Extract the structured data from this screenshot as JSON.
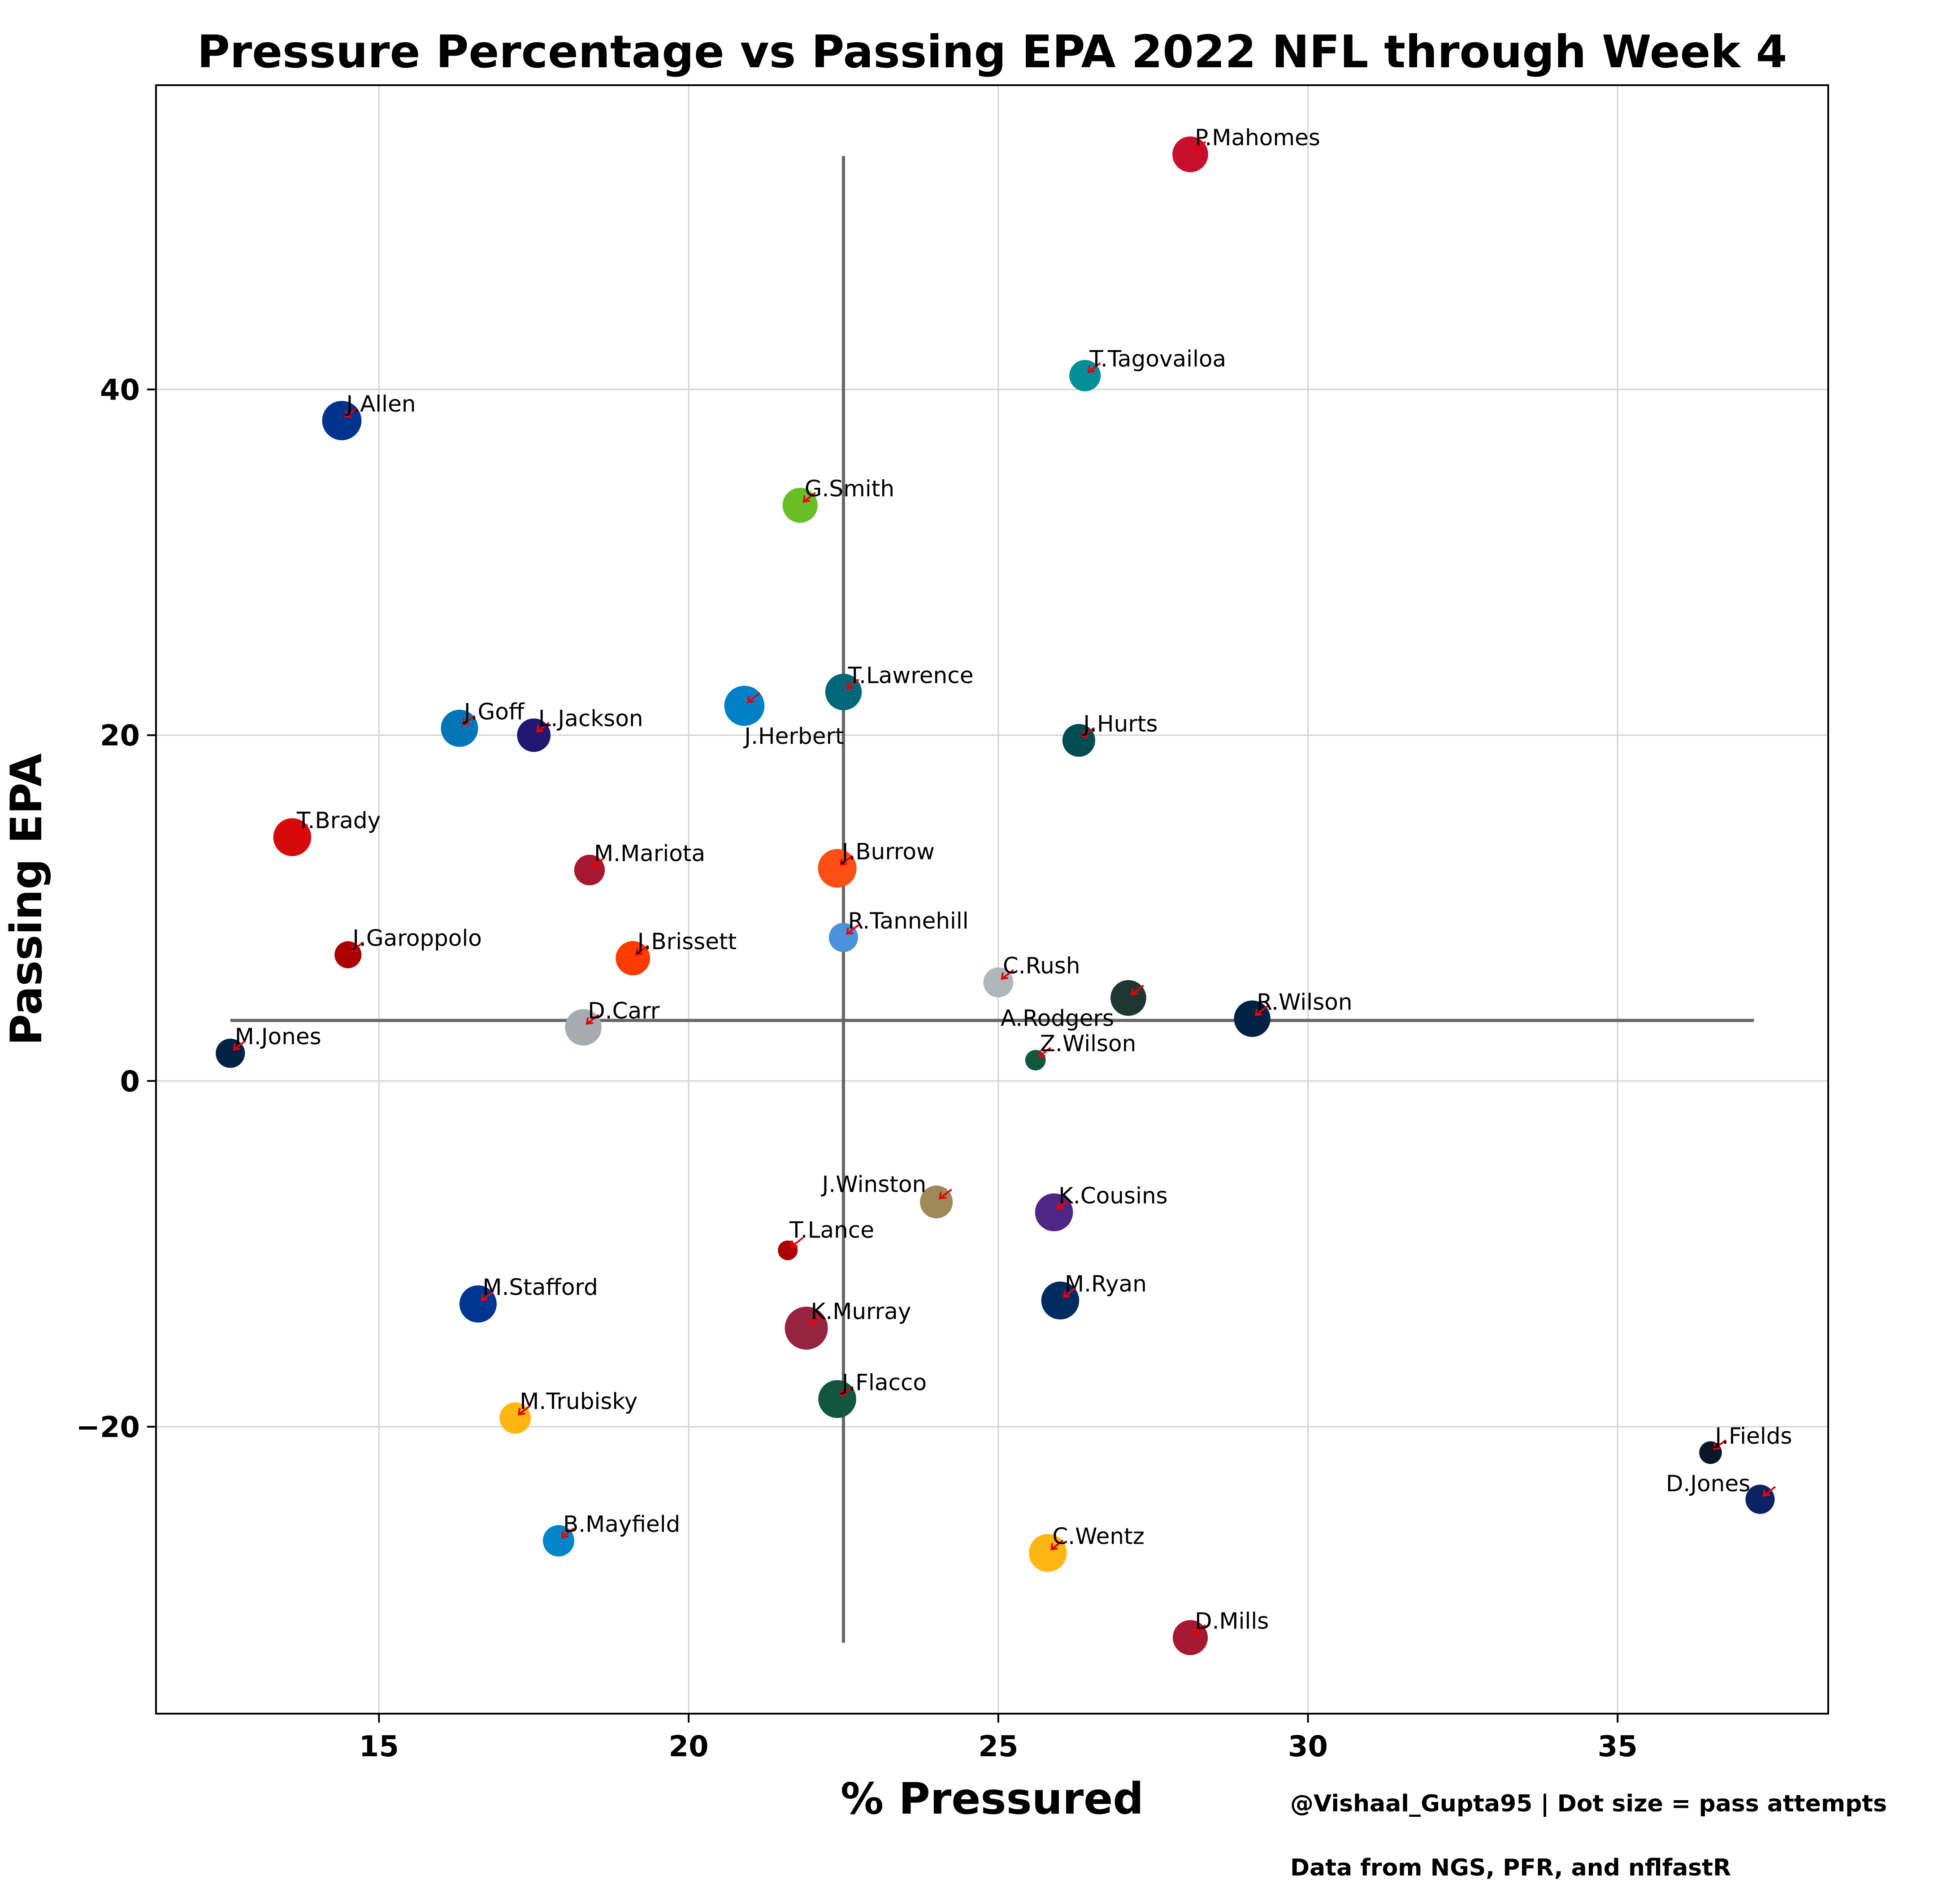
{
  "chart_data": {
    "type": "scatter",
    "title": "Pressure Percentage vs Passing EPA 2022 NFL through Week 4",
    "xlabel": "% Pressured",
    "ylabel": "Passing EPA",
    "xlim": [
      11.4,
      38.4
    ],
    "ylim": [
      -36.6,
      57.6
    ],
    "xticks": [
      15,
      20,
      25,
      30,
      35
    ],
    "yticks": [
      -20,
      0,
      20,
      40
    ],
    "grid": true,
    "credit": "@Vishaal_Gupta95 | Dot size = pass attempts",
    "source": "Data from NGS, PFR, and nflfastR",
    "mean_lines": {
      "x_mean": 22.5,
      "y_mean": 3.5,
      "vertical_y_range": [
        -32.5,
        53.5
      ],
      "horizontal_x_range": [
        12.6,
        37.2
      ],
      "color": "#666666"
    },
    "arrow_color": "#e8000b",
    "points": [
      {
        "name": "P.Mahomes",
        "x": 28.1,
        "y": 53.6,
        "attempts": 150,
        "color": "#c8102e"
      },
      {
        "name": "T.Tagovailoa",
        "x": 26.4,
        "y": 40.8,
        "attempts": 120,
        "color": "#008e97"
      },
      {
        "name": "J.Allen",
        "x": 14.4,
        "y": 38.2,
        "attempts": 175,
        "color": "#00338d"
      },
      {
        "name": "G.Smith",
        "x": 21.8,
        "y": 33.3,
        "attempts": 145,
        "color": "#69be28"
      },
      {
        "name": "T.Lawrence",
        "x": 22.5,
        "y": 22.5,
        "attempts": 155,
        "color": "#006778"
      },
      {
        "name": "J.Herbert",
        "x": 20.9,
        "y": 21.7,
        "attempts": 180,
        "color": "#0080c6"
      },
      {
        "name": "J.Goff",
        "x": 16.3,
        "y": 20.4,
        "attempts": 160,
        "color": "#0076b6"
      },
      {
        "name": "L.Jackson",
        "x": 17.5,
        "y": 20.0,
        "attempts": 135,
        "color": "#241773"
      },
      {
        "name": "J.Hurts",
        "x": 26.3,
        "y": 19.7,
        "attempts": 130,
        "color": "#004c54"
      },
      {
        "name": "T.Brady",
        "x": 13.6,
        "y": 14.1,
        "attempts": 165,
        "color": "#d50a0a"
      },
      {
        "name": "J.Burrow",
        "x": 22.4,
        "y": 12.3,
        "attempts": 170,
        "color": "#fb4f14"
      },
      {
        "name": "M.Mariota",
        "x": 18.4,
        "y": 12.2,
        "attempts": 115,
        "color": "#a71930"
      },
      {
        "name": "R.Tannehill",
        "x": 22.5,
        "y": 8.3,
        "attempts": 105,
        "color": "#4b92db"
      },
      {
        "name": "J.Garoppolo",
        "x": 14.5,
        "y": 7.3,
        "attempts": 90,
        "color": "#aa0000"
      },
      {
        "name": "J.Brissett",
        "x": 19.1,
        "y": 7.1,
        "attempts": 140,
        "color": "#ff3c00"
      },
      {
        "name": "C.Rush",
        "x": 25.0,
        "y": 5.7,
        "attempts": 110,
        "color": "#b0b7bc"
      },
      {
        "name": "A.Rodgers",
        "x": 27.1,
        "y": 4.8,
        "attempts": 150,
        "color": "#203731"
      },
      {
        "name": "R.Wilson",
        "x": 29.1,
        "y": 3.6,
        "attempts": 155,
        "color": "#002244"
      },
      {
        "name": "D.Carr",
        "x": 18.3,
        "y": 3.1,
        "attempts": 155,
        "color": "#a5acaf"
      },
      {
        "name": "M.Jones",
        "x": 12.6,
        "y": 1.6,
        "attempts": 105,
        "color": "#002244"
      },
      {
        "name": "Z.Wilson",
        "x": 25.6,
        "y": 1.2,
        "attempts": 45,
        "color": "#125740"
      },
      {
        "name": "J.Winston",
        "x": 24.0,
        "y": -7.0,
        "attempts": 130,
        "color": "#9f8958"
      },
      {
        "name": "K.Cousins",
        "x": 25.9,
        "y": -7.6,
        "attempts": 165,
        "color": "#4f2683"
      },
      {
        "name": "T.Lance",
        "x": 21.6,
        "y": -9.8,
        "attempts": 40,
        "color": "#aa0000"
      },
      {
        "name": "M.Stafford",
        "x": 16.6,
        "y": -12.9,
        "attempts": 160,
        "color": "#003594"
      },
      {
        "name": "M.Ryan",
        "x": 26.0,
        "y": -12.7,
        "attempts": 165,
        "color": "#002c5f"
      },
      {
        "name": "K.Murray",
        "x": 21.9,
        "y": -14.3,
        "attempts": 200,
        "color": "#97233f"
      },
      {
        "name": "J.Flacco",
        "x": 22.4,
        "y": -18.4,
        "attempts": 165,
        "color": "#125740"
      },
      {
        "name": "M.Trubisky",
        "x": 17.2,
        "y": -19.5,
        "attempts": 120,
        "color": "#ffb612"
      },
      {
        "name": "J.Fields",
        "x": 36.5,
        "y": -21.5,
        "attempts": 60,
        "color": "#0b162a"
      },
      {
        "name": "D.Jones",
        "x": 37.3,
        "y": -24.2,
        "attempts": 105,
        "color": "#0b2265"
      },
      {
        "name": "B.Mayfield",
        "x": 17.9,
        "y": -26.6,
        "attempts": 120,
        "color": "#0085ca"
      },
      {
        "name": "C.Wentz",
        "x": 25.8,
        "y": -27.3,
        "attempts": 165,
        "color": "#ffb612"
      },
      {
        "name": "D.Mills",
        "x": 28.1,
        "y": -32.2,
        "attempts": 145,
        "color": "#a71930"
      }
    ]
  }
}
